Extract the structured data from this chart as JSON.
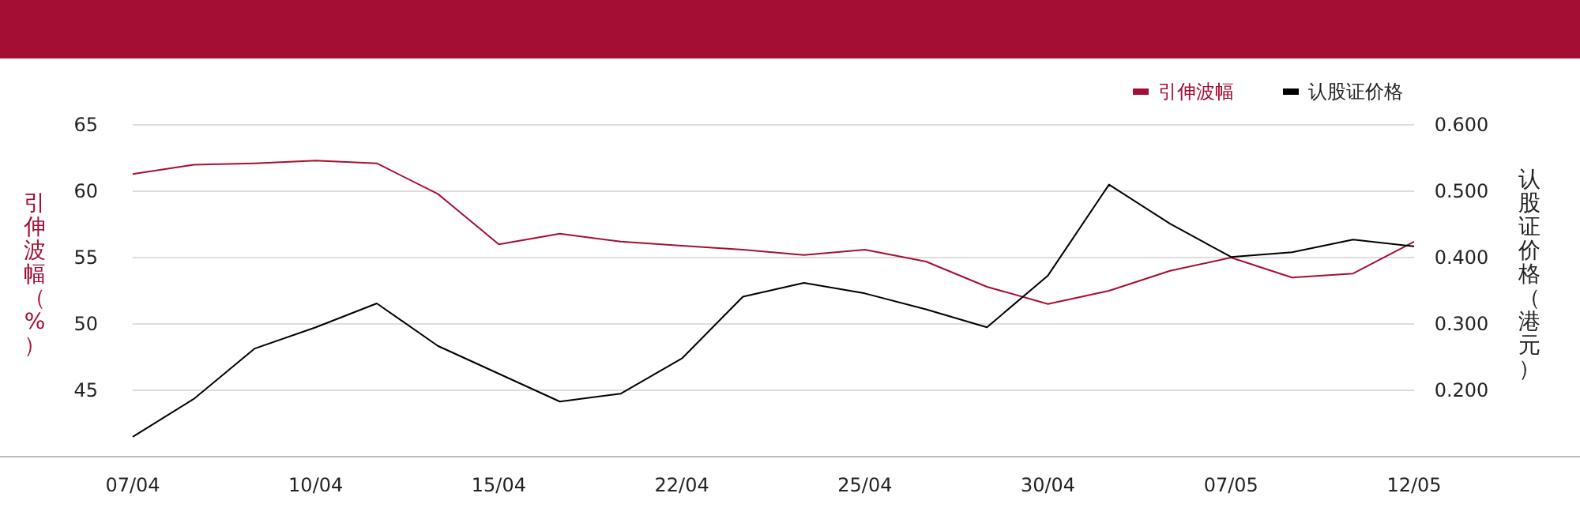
{
  "chart_data": {
    "type": "line",
    "categories": [
      "07/04",
      null,
      null,
      "10/04",
      null,
      null,
      "15/04",
      null,
      null,
      "22/04",
      null,
      null,
      "25/04",
      null,
      null,
      "30/04",
      null,
      null,
      "07/05",
      null,
      null,
      "12/05"
    ],
    "series": [
      {
        "name": "引伸波幅",
        "color": "#a50e34",
        "values": [
          61.3,
          62.0,
          62.1,
          62.3,
          62.1,
          59.8,
          56.0,
          56.8,
          56.2,
          55.9,
          55.6,
          55.2,
          55.6,
          54.7,
          52.8,
          51.5,
          52.5,
          54.0,
          55.0,
          53.5,
          53.8,
          56.2
        ]
      },
      {
        "name": "认股证价格",
        "color": "#000000",
        "axis": "y2",
        "values": [
          0.13,
          0.187,
          0.263,
          0.295,
          0.331,
          0.267,
          0.225,
          0.183,
          0.195,
          0.248,
          0.341,
          0.362,
          0.346,
          0.322,
          0.295,
          0.373,
          0.51,
          0.451,
          0.401,
          0.408,
          0.427,
          0.417
        ]
      }
    ],
    "ylabel": "引伸波幅（%）",
    "y2label": "认股证价格（港元）",
    "ylim": [
      40,
      65
    ],
    "yticks": [
      45,
      50,
      55,
      60,
      65
    ],
    "y2lim": [
      0.1,
      0.6
    ],
    "y2ticks": [
      {
        "value": 0.2,
        "label": "0.200"
      },
      {
        "value": 0.3,
        "label": "0.300"
      },
      {
        "value": 0.4,
        "label": "0.400"
      },
      {
        "value": 0.5,
        "label": "0.500"
      },
      {
        "value": 0.6,
        "label": "0.600"
      }
    ],
    "grid": "y",
    "legend": "top right",
    "marker": "none",
    "line_style": "solid"
  }
}
